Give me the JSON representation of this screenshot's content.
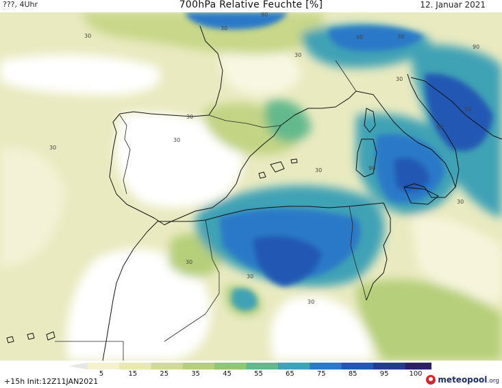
{
  "header": {
    "location": "???, 4Uhr",
    "title": "700hPa Relative Feuchte [%]",
    "date": "12. Januar 2021"
  },
  "footer": {
    "run_info": "+15h Init:12Z11JAN2021",
    "logo_text": "meteopool",
    "logo_suffix": ".org"
  },
  "legend": {
    "ticks": [
      "5",
      "15",
      "25",
      "35",
      "45",
      "55",
      "65",
      "75",
      "85",
      "95",
      "100"
    ],
    "colors": [
      "#e6e6e6",
      "#f5f3cf",
      "#e7e8b3",
      "#d2db96",
      "#b6cf7a",
      "#8fc872",
      "#63b98c",
      "#3fa2b5",
      "#2b79c8",
      "#2158b4",
      "#223c8f",
      "#2e1f6b",
      "#4c166a"
    ]
  },
  "contour_labels": [
    {
      "text": "90"
    },
    {
      "text": "30"
    },
    {
      "text": "30"
    },
    {
      "text": "90"
    },
    {
      "text": "30"
    },
    {
      "text": "90"
    },
    {
      "text": "30"
    },
    {
      "text": "30"
    },
    {
      "text": "30"
    },
    {
      "text": "30"
    },
    {
      "text": "30"
    },
    {
      "text": "90"
    },
    {
      "text": "90"
    },
    {
      "text": "90"
    },
    {
      "text": "30"
    },
    {
      "text": "30"
    },
    {
      "text": "30"
    },
    {
      "text": "30"
    },
    {
      "text": "30"
    }
  ]
}
